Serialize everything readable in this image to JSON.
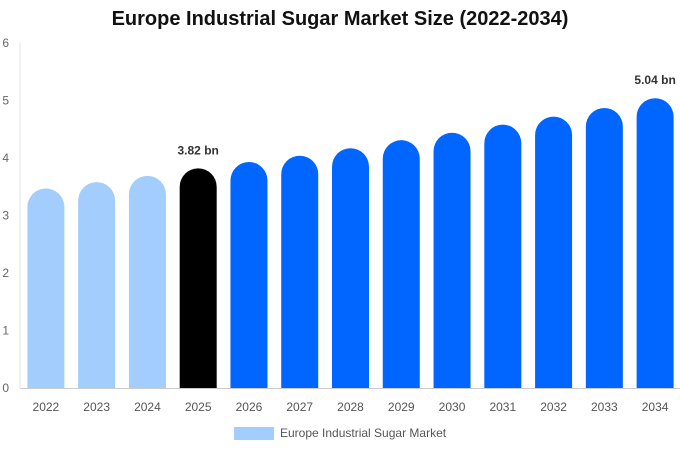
{
  "chart_data": {
    "type": "bar",
    "title": "Europe Industrial Sugar Market Size (2022-2034)",
    "categories": [
      "2022",
      "2023",
      "2024",
      "2025",
      "2026",
      "2027",
      "2028",
      "2029",
      "2030",
      "2031",
      "2032",
      "2033",
      "2034"
    ],
    "series": [
      {
        "name": "Europe Industrial Sugar Market",
        "values": [
          3.47,
          3.58,
          3.69,
          3.82,
          3.93,
          4.04,
          4.17,
          4.31,
          4.44,
          4.58,
          4.72,
          4.87,
          5.04
        ]
      }
    ],
    "ylim": [
      0,
      6
    ],
    "yticks": [
      0,
      1,
      2,
      3,
      4,
      5,
      6
    ],
    "data_labels": [
      {
        "category": "2025",
        "text": "3.82 bn"
      },
      {
        "category": "2034",
        "text": "5.04 bn"
      }
    ],
    "colors": {
      "historical": "#a3cdfd",
      "base_year": "#000000",
      "forecast": "#0066ff"
    },
    "legend": {
      "position": "bottom",
      "label": "Europe Industrial Sugar Market",
      "color": "#a3cdfd"
    },
    "grid": false
  }
}
